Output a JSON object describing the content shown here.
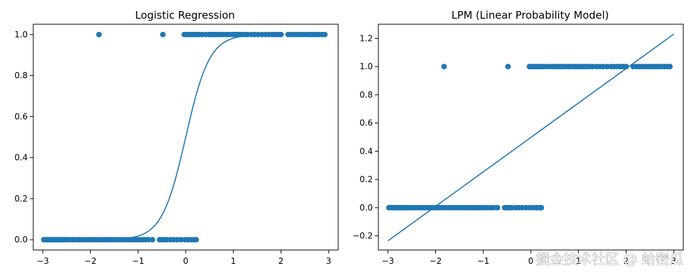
{
  "figure": {
    "watermark": "掘金技术社区 @ 蛤密瓜",
    "colors": {
      "series": "#1f77b4",
      "axes": "#000000",
      "background": "#ffffff"
    }
  },
  "chart_data": [
    {
      "type": "scatter",
      "title": "Logistic Regression",
      "xlabel": "",
      "ylabel": "",
      "xlim": [
        -3.2,
        3.2
      ],
      "ylim": [
        -0.05,
        1.05
      ],
      "xticks": [
        -3,
        -2,
        -1,
        0,
        1,
        2,
        3
      ],
      "yticks": [
        0.0,
        0.2,
        0.4,
        0.6,
        0.8,
        1.0
      ],
      "xtick_labels": [
        "−3",
        "−2",
        "−1",
        "0",
        "1",
        "2",
        "3"
      ],
      "ytick_labels": [
        "0.0",
        "0.2",
        "0.4",
        "0.6",
        "0.8",
        "1.0"
      ],
      "grid": false,
      "scatter": {
        "x0": [
          -2.98,
          -2.94,
          -2.9,
          -2.86,
          -2.82,
          -2.78,
          -2.74,
          -2.7,
          -2.66,
          -2.62,
          -2.58,
          -2.54,
          -2.5,
          -2.44,
          -2.38,
          -2.32,
          -2.26,
          -2.22,
          -2.16,
          -2.1,
          -2.04,
          -1.98,
          -1.92,
          -1.86,
          -1.8,
          -1.74,
          -1.68,
          -1.62,
          -1.56,
          -1.5,
          -1.44,
          -1.38,
          -1.32,
          -1.26,
          -1.2,
          -1.14,
          -1.08,
          -1.02,
          -0.96,
          -0.9,
          -0.84,
          -0.78,
          -0.7,
          -0.55,
          -0.5,
          -0.45,
          -0.4,
          -0.32,
          -0.25,
          -0.18,
          -0.1,
          -0.02,
          0.05,
          0.12,
          0.18,
          0.22
        ],
        "y0": 0,
        "x1": [
          -1.82,
          -0.48,
          -0.03,
          0.02,
          0.07,
          0.12,
          0.17,
          0.22,
          0.27,
          0.34,
          0.41,
          0.48,
          0.53,
          0.58,
          0.63,
          0.68,
          0.74,
          0.8,
          0.86,
          0.92,
          0.98,
          1.03,
          1.08,
          1.13,
          1.18,
          1.24,
          1.3,
          1.38,
          1.45,
          1.52,
          1.6,
          1.68,
          1.75,
          1.82,
          1.88,
          1.94,
          2.0,
          2.15,
          2.22,
          2.28,
          2.34,
          2.4,
          2.46,
          2.52,
          2.58,
          2.63,
          2.68,
          2.74,
          2.8,
          2.86,
          2.92
        ],
        "y1": 1
      },
      "curve": {
        "kind": "logistic",
        "intercept": 0.0,
        "slope": 4.0,
        "x_range": [
          -3,
          1.95
        ]
      }
    },
    {
      "type": "scatter",
      "title": "LPM (Linear Probability Model)",
      "xlabel": "",
      "ylabel": "",
      "xlim": [
        -3.2,
        3.2
      ],
      "ylim": [
        -0.3,
        1.3
      ],
      "xticks": [
        -3,
        -2,
        -1,
        0,
        1,
        2,
        3
      ],
      "yticks": [
        -0.2,
        0.0,
        0.2,
        0.4,
        0.6,
        0.8,
        1.0,
        1.2
      ],
      "xtick_labels": [
        "−3",
        "−2",
        "−1",
        "0",
        "1",
        "2",
        "3"
      ],
      "ytick_labels": [
        "−0.2",
        "0.0",
        "0.2",
        "0.4",
        "0.6",
        "0.8",
        "1.0",
        "1.2"
      ],
      "grid": false,
      "scatter": {
        "x0": [
          -2.98,
          -2.94,
          -2.9,
          -2.86,
          -2.82,
          -2.78,
          -2.74,
          -2.7,
          -2.66,
          -2.62,
          -2.58,
          -2.54,
          -2.5,
          -2.44,
          -2.38,
          -2.32,
          -2.26,
          -2.22,
          -2.16,
          -2.1,
          -2.04,
          -1.98,
          -1.92,
          -1.86,
          -1.8,
          -1.74,
          -1.68,
          -1.62,
          -1.56,
          -1.5,
          -1.44,
          -1.38,
          -1.32,
          -1.26,
          -1.2,
          -1.14,
          -1.08,
          -1.02,
          -0.96,
          -0.9,
          -0.84,
          -0.78,
          -0.7,
          -0.55,
          -0.5,
          -0.45,
          -0.4,
          -0.32,
          -0.25,
          -0.18,
          -0.1,
          -0.02,
          0.05,
          0.12,
          0.18,
          0.22
        ],
        "y0": 0,
        "x1": [
          -1.82,
          -0.48,
          -0.03,
          0.02,
          0.07,
          0.12,
          0.17,
          0.22,
          0.27,
          0.34,
          0.41,
          0.48,
          0.53,
          0.58,
          0.63,
          0.68,
          0.74,
          0.8,
          0.86,
          0.92,
          0.98,
          1.03,
          1.08,
          1.13,
          1.18,
          1.24,
          1.3,
          1.38,
          1.45,
          1.52,
          1.6,
          1.68,
          1.75,
          1.82,
          1.88,
          1.94,
          2.0,
          2.15,
          2.22,
          2.28,
          2.34,
          2.4,
          2.46,
          2.52,
          2.58,
          2.63,
          2.68,
          2.74,
          2.8,
          2.86,
          2.92
        ],
        "y1": 1
      },
      "line": {
        "kind": "linear",
        "x": [
          -3.0,
          3.0
        ],
        "y": [
          -0.235,
          1.23
        ]
      }
    }
  ]
}
